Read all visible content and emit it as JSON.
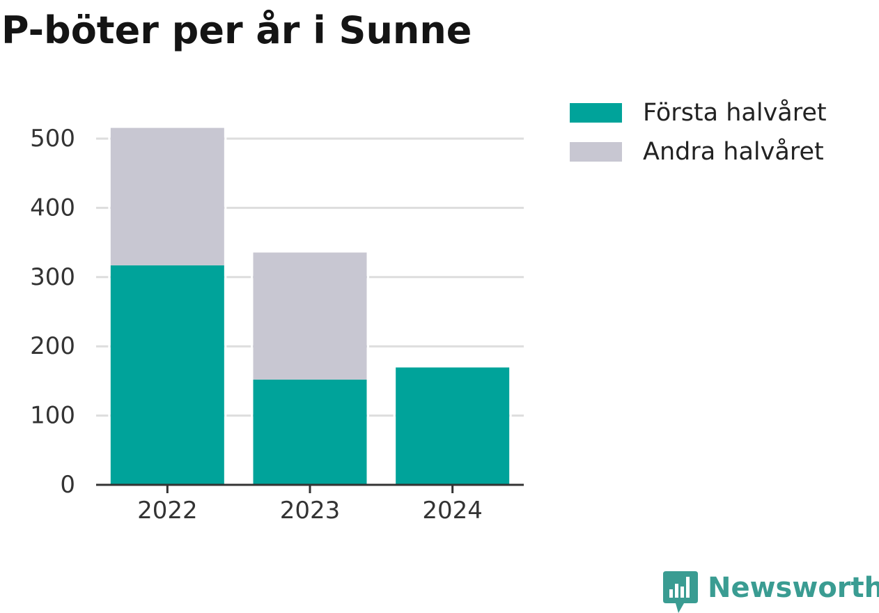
{
  "colors": {
    "first_half": "#00a39a",
    "second_half": "#c8c7d2",
    "brand": "#3a9c92"
  },
  "chart_data": {
    "type": "bar",
    "stacked": true,
    "title": "P-böter per år i Sunne",
    "categories": [
      "2022",
      "2023",
      "2024"
    ],
    "series": [
      {
        "name": "Första halvåret",
        "values": [
          317,
          152,
          170
        ]
      },
      {
        "name": "Andra halvåret",
        "values": [
          199,
          184,
          0
        ]
      }
    ],
    "y_ticks": [
      0,
      100,
      200,
      300,
      400,
      500
    ],
    "ylim": [
      0,
      520
    ],
    "grid": true,
    "legend_position": "top-right"
  },
  "brand": {
    "icon": "newsworthy-logo-icon",
    "name": "Newsworthy"
  }
}
